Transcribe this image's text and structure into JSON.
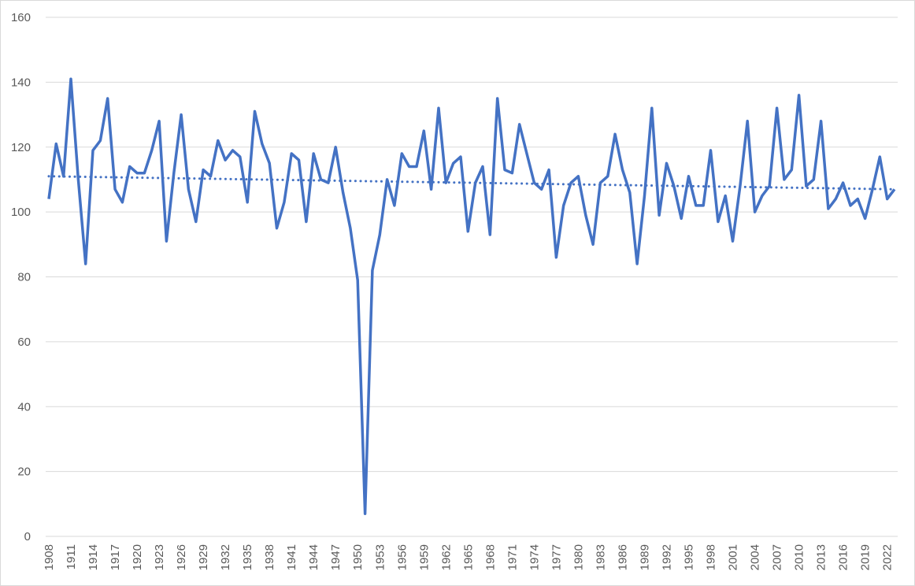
{
  "chart_data": {
    "type": "line",
    "title": "",
    "xlabel": "",
    "ylabel": "",
    "ylim": [
      0,
      160
    ],
    "yticks": [
      0,
      20,
      40,
      60,
      80,
      100,
      120,
      140,
      160
    ],
    "xlim": [
      1908,
      2023
    ],
    "xticks": [
      1908,
      1911,
      1914,
      1917,
      1920,
      1923,
      1926,
      1929,
      1932,
      1935,
      1938,
      1941,
      1944,
      1947,
      1950,
      1953,
      1956,
      1959,
      1962,
      1965,
      1968,
      1971,
      1974,
      1977,
      1980,
      1983,
      1986,
      1989,
      1992,
      1995,
      1998,
      2001,
      2004,
      2007,
      2010,
      2013,
      2016,
      2019,
      2022
    ],
    "grid": "horizontal",
    "legend": "none",
    "colors": {
      "series": "#4472C4",
      "grid": "#D9D9D9",
      "text": "#595959"
    },
    "series": [
      {
        "style": "solid",
        "x": [
          1908,
          1909,
          1910,
          1911,
          1912,
          1913,
          1914,
          1915,
          1916,
          1917,
          1918,
          1919,
          1920,
          1921,
          1922,
          1923,
          1924,
          1925,
          1926,
          1927,
          1928,
          1929,
          1930,
          1931,
          1932,
          1933,
          1934,
          1935,
          1936,
          1937,
          1938,
          1939,
          1940,
          1941,
          1942,
          1943,
          1944,
          1945,
          1946,
          1947,
          1948,
          1949,
          1950,
          1951,
          1952,
          1953,
          1954,
          1955,
          1956,
          1957,
          1958,
          1959,
          1960,
          1961,
          1962,
          1963,
          1964,
          1965,
          1966,
          1967,
          1968,
          1969,
          1970,
          1971,
          1972,
          1973,
          1974,
          1975,
          1976,
          1977,
          1978,
          1979,
          1980,
          1981,
          1982,
          1983,
          1984,
          1985,
          1986,
          1987,
          1988,
          1989,
          1990,
          1991,
          1992,
          1993,
          1994,
          1995,
          1996,
          1997,
          1998,
          1999,
          2000,
          2001,
          2002,
          2003,
          2004,
          2005,
          2006,
          2007,
          2008,
          2009,
          2010,
          2011,
          2012,
          2013,
          2014,
          2015,
          2016,
          2017,
          2018,
          2019,
          2020,
          2021,
          2022,
          2023
        ],
        "values": [
          104,
          121,
          111,
          141,
          110,
          84,
          119,
          122,
          135,
          107,
          103,
          114,
          112,
          112,
          119,
          128,
          91,
          112,
          130,
          107,
          97,
          113,
          111,
          122,
          116,
          119,
          117,
          103,
          131,
          121,
          115,
          95,
          103,
          118,
          116,
          97,
          118,
          110,
          109,
          120,
          106,
          95,
          79,
          7,
          82,
          93,
          110,
          102,
          118,
          114,
          114,
          125,
          107,
          132,
          109,
          115,
          117,
          94,
          109,
          114,
          93,
          135,
          113,
          112,
          127,
          118,
          109,
          107,
          113,
          86,
          102,
          109,
          111,
          99,
          90,
          109,
          111,
          124,
          113,
          106,
          84,
          105,
          132,
          99,
          115,
          108,
          98,
          111,
          102,
          102,
          119,
          97,
          105,
          91,
          108,
          128,
          100,
          105,
          108,
          132,
          110,
          113,
          136,
          108,
          110,
          128,
          101,
          104,
          109,
          102,
          104,
          98,
          107,
          117,
          104,
          107
        ]
      },
      {
        "style": "dotted",
        "x": [
          1908,
          2023
        ],
        "values": [
          111,
          107
        ]
      }
    ]
  }
}
